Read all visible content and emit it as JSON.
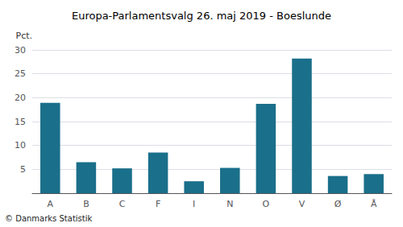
{
  "chart_data": {
    "type": "bar",
    "title": "Europa-Parlamentsvalg 26. maj 2019 - Boeslunde",
    "categories": [
      "A",
      "B",
      "C",
      "F",
      "I",
      "N",
      "O",
      "V",
      "Ø",
      "Å"
    ],
    "values": [
      18.9,
      6.5,
      5.2,
      8.5,
      2.5,
      5.3,
      18.7,
      28.2,
      3.6,
      4.0
    ],
    "color": "#1a6f8a",
    "ylabel": "Pct.",
    "footer": "© Danmarks Statistik",
    "ylim": [
      0,
      30
    ],
    "yticks": [
      {
        "value": 0,
        "label": ""
      },
      5,
      10,
      15,
      20,
      25,
      30
    ],
    "grid": true
  }
}
